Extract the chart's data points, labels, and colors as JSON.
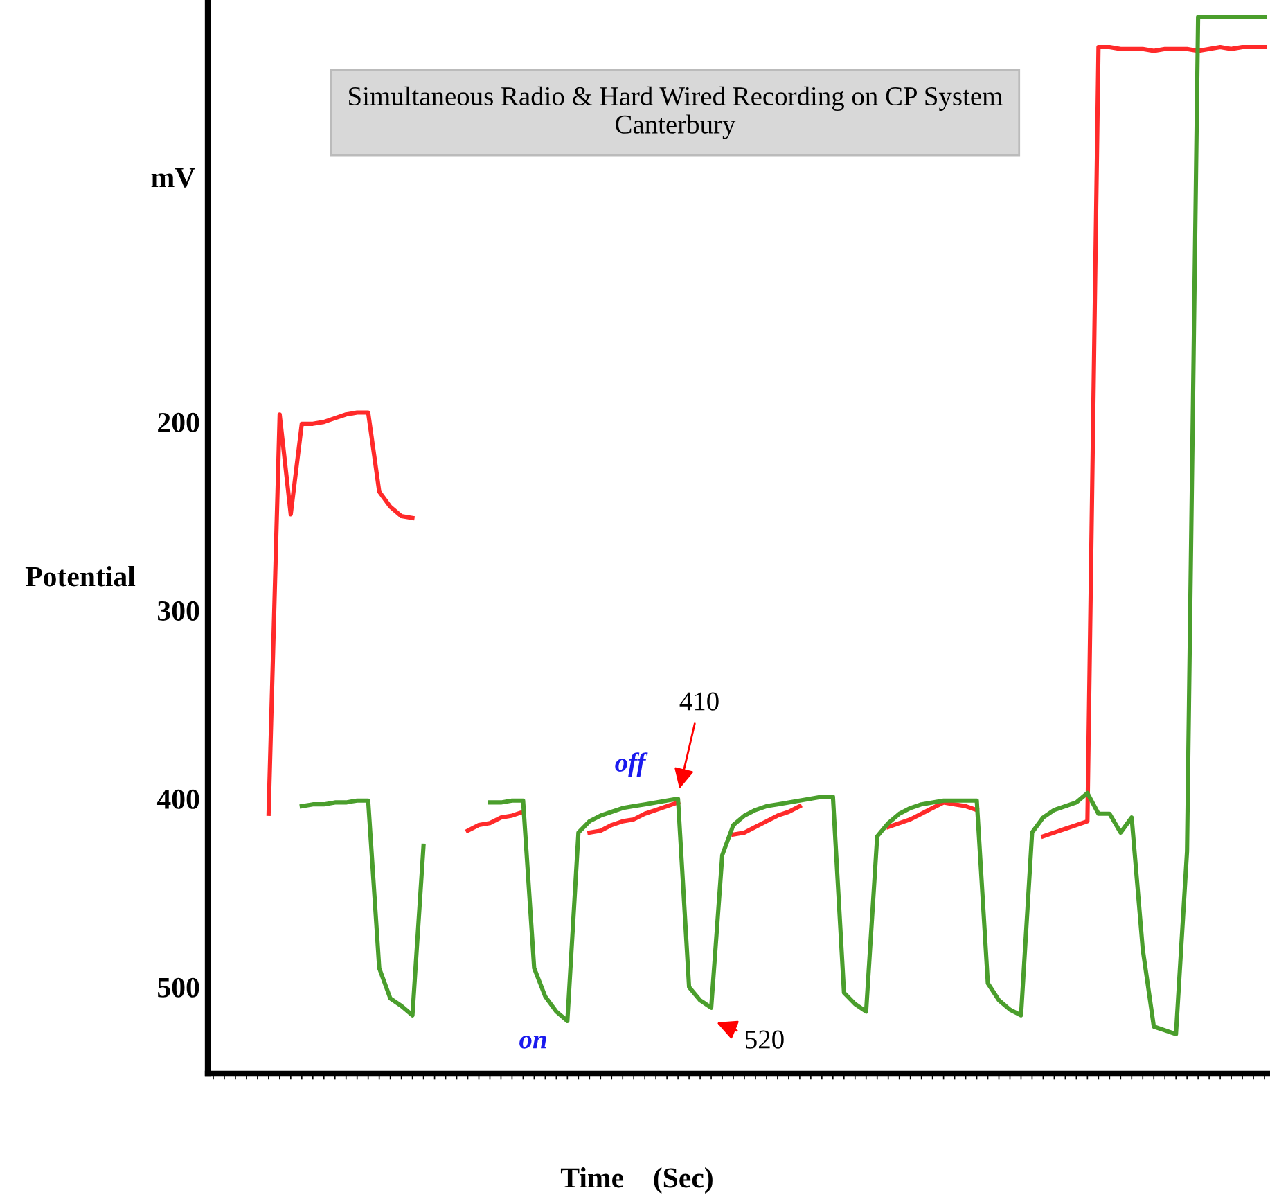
{
  "chart_data": {
    "type": "line",
    "title": "Simultaneous Radio & Hard Wired Recording on CP System\nCanterbury",
    "xlabel": "Time    (Sec)",
    "annotations": [
      "mV",
      "410",
      "520",
      "off",
      "on",
      "Potential"
    ],
    "categories": [
      null,
      null,
      null,
      null,
      null,
      null,
      null,
      null,
      null,
      null,
      null,
      null,
      null,
      null,
      null,
      null,
      null,
      null,
      null,
      null,
      null,
      null,
      null,
      null,
      null,
      null,
      null,
      null,
      null,
      null,
      null,
      null,
      null,
      null,
      null,
      null,
      null,
      null,
      null,
      null,
      null,
      null,
      null,
      null,
      null,
      null,
      null,
      null,
      null,
      null,
      null,
      null,
      null,
      null,
      null,
      null,
      null,
      null,
      null,
      null,
      null,
      null,
      null,
      null,
      null,
      null,
      null,
      null,
      null,
      null,
      null,
      null,
      null,
      null,
      null,
      null,
      null,
      null,
      null,
      null,
      null,
      null,
      null,
      null,
      null,
      null,
      null,
      null,
      null,
      null,
      null,
      null,
      null,
      null,
      null,
      null
    ],
    "series": [
      {
        "color": "#ff2a2a",
        "values": [
          null,
          null,
          null,
          null,
          null,
          408,
          196,
          249,
          201,
          201,
          200,
          198,
          196,
          195,
          195,
          237,
          245,
          250,
          251,
          null,
          null,
          null,
          null,
          null,
          null,
          null,
          null,
          null,
          null,
          null,
          null,
          null,
          null,
          null,
          null,
          null,
          null,
          null,
          null,
          null,
          null,
          null,
          null,
          null,
          null,
          null,
          null,
          null,
          null,
          null,
          null,
          null,
          null,
          null,
          null,
          null,
          null,
          null,
          null,
          null,
          null,
          null,
          null,
          null,
          null,
          null,
          null,
          null,
          null,
          null,
          null,
          null,
          null,
          null,
          null,
          null,
          null,
          null,
          null,
          null,
          null,
          null,
          null,
          null,
          null,
          null,
          null,
          null,
          null,
          null,
          null,
          null,
          null,
          null,
          null,
          null
        ]
      },
      {
        "color": "#ff2a2a",
        "values": [
          null,
          null,
          null,
          null,
          null,
          null,
          null,
          null,
          null,
          null,
          null,
          null,
          null,
          null,
          null,
          null,
          null,
          null,
          null,
          null,
          null,
          null,
          null,
          417,
          414,
          413,
          410,
          409,
          407,
          null,
          null,
          null,
          null,
          null,
          null,
          null,
          null,
          null,
          null,
          null,
          null,
          null,
          null,
          null,
          null,
          null,
          null,
          null,
          null,
          null,
          null,
          null,
          null,
          null,
          null,
          null,
          null,
          null,
          null,
          null,
          null,
          null,
          null,
          null,
          null,
          null,
          null,
          null,
          null,
          null,
          null,
          null,
          null,
          null,
          null,
          null,
          null,
          null,
          null,
          null,
          null,
          null,
          null,
          null,
          null,
          null,
          null,
          null,
          null,
          null,
          null,
          null,
          null,
          null,
          null,
          null
        ]
      },
      {
        "color": "#ff2a2a",
        "values": [
          null,
          null,
          null,
          null,
          null,
          null,
          null,
          null,
          null,
          null,
          null,
          null,
          null,
          null,
          null,
          null,
          null,
          null,
          null,
          null,
          null,
          null,
          null,
          null,
          null,
          null,
          null,
          null,
          null,
          null,
          null,
          null,
          null,
          null,
          418,
          417,
          414,
          412,
          411,
          408,
          406,
          404,
          402,
          null,
          null,
          null,
          null,
          null,
          null,
          null,
          null,
          null,
          null,
          null,
          null,
          null,
          null,
          null,
          null,
          null,
          null,
          null,
          null,
          null,
          null,
          null,
          null,
          null,
          null,
          null,
          null,
          null,
          null,
          null,
          null,
          null,
          null,
          null,
          null,
          null,
          null,
          null,
          null,
          null,
          null,
          null,
          null,
          null,
          null,
          null,
          null,
          null,
          null,
          null,
          null,
          null
        ]
      },
      {
        "color": "#ff2a2a",
        "values": [
          null,
          null,
          null,
          null,
          null,
          null,
          null,
          null,
          null,
          null,
          null,
          null,
          null,
          null,
          null,
          null,
          null,
          null,
          null,
          null,
          null,
          null,
          null,
          null,
          null,
          null,
          null,
          null,
          null,
          null,
          null,
          null,
          null,
          null,
          null,
          null,
          null,
          null,
          null,
          null,
          null,
          null,
          null,
          null,
          null,
          null,
          null,
          419,
          418,
          415,
          412,
          409,
          407,
          404,
          null,
          null,
          null,
          null,
          null,
          null,
          null,
          null,
          null,
          null,
          null,
          null,
          null,
          null,
          null,
          null,
          null,
          null,
          null,
          null,
          null,
          null,
          null,
          null,
          null,
          null,
          null,
          null,
          null,
          null,
          null,
          null,
          null,
          null,
          null,
          null,
          null,
          null,
          null,
          null,
          null,
          null
        ]
      },
      {
        "color": "#ff2a2a",
        "values": [
          null,
          null,
          null,
          null,
          null,
          null,
          null,
          null,
          null,
          null,
          null,
          null,
          null,
          null,
          null,
          null,
          null,
          null,
          null,
          null,
          null,
          null,
          null,
          null,
          null,
          null,
          null,
          null,
          null,
          null,
          null,
          null,
          null,
          null,
          null,
          null,
          null,
          null,
          null,
          null,
          null,
          null,
          null,
          null,
          null,
          null,
          null,
          null,
          null,
          null,
          null,
          null,
          null,
          null,
          null,
          null,
          null,
          null,
          null,
          null,
          null,
          415,
          413,
          411,
          408,
          405,
          402,
          403,
          404,
          406,
          null,
          null,
          null,
          null,
          null,
          null,
          null,
          null,
          null,
          null,
          null,
          null,
          null,
          null,
          null,
          null,
          null,
          null,
          null,
          null,
          null,
          null,
          null,
          null,
          null,
          null
        ]
      },
      {
        "color": "#ff2a2a",
        "values": [
          null,
          null,
          null,
          null,
          null,
          null,
          null,
          null,
          null,
          null,
          null,
          null,
          null,
          null,
          null,
          null,
          null,
          null,
          null,
          null,
          null,
          null,
          null,
          null,
          null,
          null,
          null,
          null,
          null,
          null,
          null,
          null,
          null,
          null,
          null,
          null,
          null,
          null,
          null,
          null,
          null,
          null,
          null,
          null,
          null,
          null,
          null,
          null,
          null,
          null,
          null,
          null,
          null,
          null,
          null,
          null,
          null,
          null,
          null,
          null,
          null,
          null,
          null,
          null,
          null,
          null,
          null,
          null,
          null,
          null,
          null,
          null,
          null,
          null,
          null,
          420,
          418,
          416,
          414,
          412,
          1,
          1,
          2,
          2,
          2,
          3,
          2,
          2,
          2,
          3,
          2,
          1,
          2,
          1,
          1,
          1
        ]
      },
      {
        "color": "#4a9e2c",
        "values": [
          null,
          null,
          null,
          null,
          null,
          null,
          null,
          null,
          404,
          403,
          403,
          402,
          402,
          401,
          401,
          490,
          506,
          510,
          515,
          425,
          null,
          null,
          null,
          null,
          null,
          null,
          null,
          null,
          null,
          null,
          null,
          null,
          null,
          null,
          null,
          null,
          null,
          null,
          null,
          null,
          null,
          null,
          null,
          null,
          null,
          null,
          null,
          null,
          null,
          null,
          null,
          null,
          null,
          null,
          null,
          null,
          null,
          null,
          null,
          null,
          null,
          null,
          null,
          null,
          null,
          null,
          null,
          null,
          null,
          null,
          null,
          null,
          null,
          null,
          null,
          null,
          null,
          null,
          null,
          null,
          null,
          null,
          null,
          null,
          null,
          null,
          null,
          null,
          null,
          null,
          null,
          null,
          null,
          null,
          null,
          null
        ]
      },
      {
        "color": "#4a9e2c",
        "values": [
          null,
          null,
          null,
          null,
          null,
          null,
          null,
          null,
          null,
          null,
          null,
          null,
          null,
          null,
          null,
          null,
          null,
          null,
          null,
          null,
          null,
          null,
          null,
          null,
          null,
          402,
          402,
          401,
          401,
          490,
          505,
          513,
          518,
          418,
          412,
          409,
          407,
          405,
          404,
          403,
          402,
          401,
          400,
          500,
          507,
          511,
          430,
          414,
          409,
          406,
          404,
          403,
          402,
          401,
          400,
          399,
          399,
          503,
          509,
          513,
          420,
          413,
          408,
          405,
          403,
          402,
          401,
          401,
          401,
          401,
          498,
          507,
          512,
          515,
          418,
          410,
          406,
          404,
          402,
          397,
          408,
          408,
          418,
          410,
          480,
          521,
          523,
          525,
          428,
          -15,
          -15,
          -15,
          -15,
          -15,
          -15,
          -15
        ]
      }
    ],
    "ylim": [
      546,
      -24
    ],
    "yticks": [
      200,
      300,
      400,
      500
    ],
    "tick_labels": "y",
    "line_style": "solid"
  }
}
